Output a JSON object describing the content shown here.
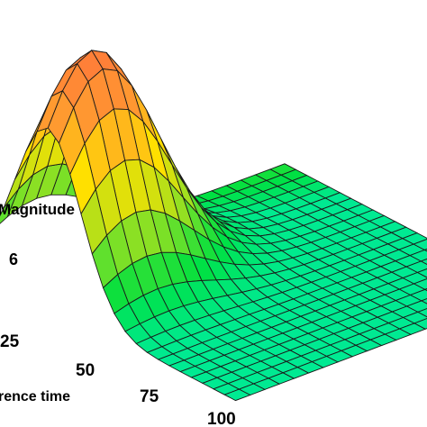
{
  "chart_data": {
    "type": "surface3d",
    "title": "",
    "zlabel": "Magnitude",
    "xlabel": "rence time",
    "z_tick_labels": [
      "6"
    ],
    "x_tick_labels": [
      "25",
      "50",
      "75",
      "100"
    ],
    "x_range": [
      0,
      110
    ],
    "y_range": [
      0,
      20
    ],
    "z_range": [
      0,
      12
    ],
    "grid": {
      "x_steps": 22,
      "y_steps": 20
    },
    "surface_model": "z = 12 * exp(-(x-25)^2/450) * exp(-(y-3)^2/30) + 1.2",
    "peak": {
      "x": 25,
      "y": 3,
      "z": 13.2
    },
    "baseline_z": 1.2,
    "colormap": [
      "#ff00ff",
      "#3b2fe0",
      "#00b0ff",
      "#00f0c0",
      "#00e040",
      "#a0e020",
      "#ffe000",
      "#ff9a30",
      "#ff7a3a"
    ],
    "mesh_color": "#1a1a1a",
    "grid_on": false,
    "legend": "none"
  }
}
